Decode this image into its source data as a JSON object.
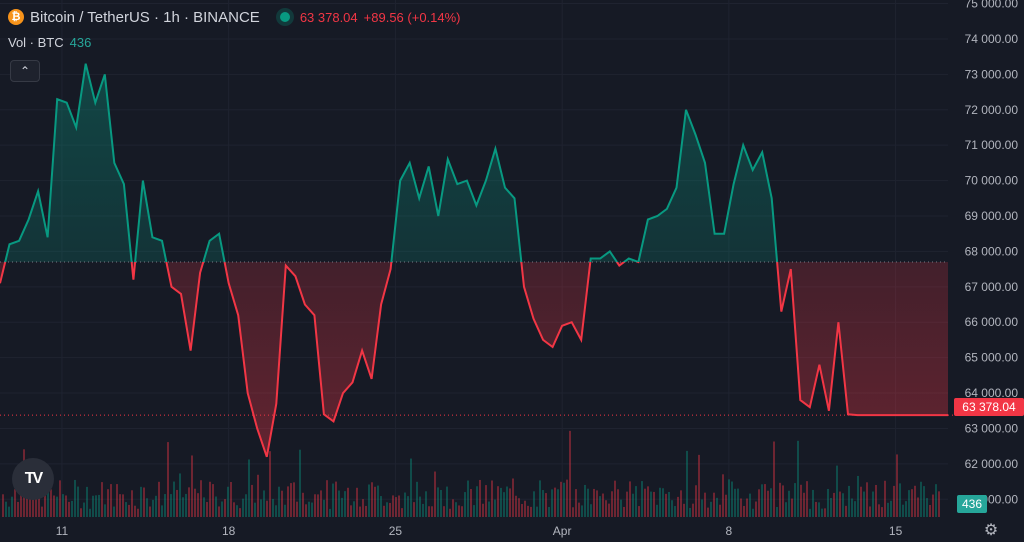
{
  "legend": {
    "coin_glyph": "₿",
    "symbol": "Bitcoin / TetherUS · 1h · BINANCE",
    "last": "63 378.04",
    "change": "+89.56 (+0.14%)"
  },
  "volume_legend": {
    "label": "Vol · BTC",
    "value": "436"
  },
  "buttons": {
    "collapse_glyph": "⌃",
    "logo": "TV",
    "settings_glyph": "⚙"
  },
  "colors": {
    "up": "#089981",
    "down": "#f23645",
    "bg": "#161a25",
    "grid": "#1f2330",
    "text": "#b2b5be"
  },
  "chart_data": {
    "type": "area",
    "baseline": 67700,
    "last_price": 63378.04,
    "last_price_label": "63 378.04",
    "ylim": [
      60500,
      75100
    ],
    "y_ticks": [
      61000,
      62000,
      63000,
      64000,
      65000,
      66000,
      67000,
      68000,
      69000,
      70000,
      71000,
      72000,
      73000,
      74000,
      75000
    ],
    "y_tick_labels": [
      "61 000.00",
      "62 000.00",
      "63 000.00",
      "64 000.00",
      "65 000.00",
      "66 000.00",
      "67 000.00",
      "68 000.00",
      "69 000.00",
      "70 000.00",
      "71 000.00",
      "72 000.00",
      "73 000.00",
      "74 000.00",
      "75 000.00"
    ],
    "x_ticks": [
      {
        "label": "11",
        "day": 11
      },
      {
        "label": "18",
        "day": 18
      },
      {
        "label": "25",
        "day": 25
      },
      {
        "label": "Apr",
        "day": 32
      },
      {
        "label": "8",
        "day": 39
      },
      {
        "label": "15",
        "day": 46
      }
    ],
    "x_range": [
      8.4,
      48.2
    ],
    "series": [
      {
        "x": [
          8.4,
          8.8,
          9.2,
          9.6,
          10.0,
          10.4,
          10.8,
          11.2,
          11.6,
          12.0,
          12.4,
          12.8,
          13.2,
          13.6,
          14.0,
          14.4,
          14.8,
          15.2,
          15.6,
          16.0,
          16.4,
          16.8,
          17.2,
          17.6,
          18.0,
          18.4,
          18.8,
          19.2,
          19.6,
          20.0,
          20.4,
          20.8,
          21.2,
          21.6,
          22.0,
          22.4,
          22.8,
          23.2,
          23.6,
          24.0,
          24.4,
          24.8,
          25.2,
          25.6,
          26.0,
          26.4,
          26.8,
          27.2,
          27.6,
          28.0,
          28.4,
          28.8,
          29.2,
          29.6,
          30.0,
          30.4,
          30.8,
          31.2,
          31.6,
          32.0,
          32.4,
          32.8,
          33.2,
          33.6,
          34.0,
          34.4,
          34.8,
          35.2,
          35.6,
          36.0,
          36.4,
          36.8,
          37.2,
          37.6,
          38.0,
          38.4,
          38.8,
          39.2,
          39.6,
          40.0,
          40.4,
          40.8,
          41.2,
          41.6,
          42.0,
          42.4,
          42.8,
          43.2,
          43.6,
          44.0,
          44.4,
          44.8,
          45.2,
          45.6,
          46.0,
          46.4,
          46.8,
          47.2,
          47.6,
          48.0,
          48.2
        ],
        "values": [
          67100,
          68200,
          68300,
          68900,
          69700,
          68400,
          72300,
          72200,
          71500,
          73300,
          72200,
          73000,
          70500,
          69900,
          67200,
          70000,
          68400,
          68300,
          67000,
          66800,
          65200,
          67400,
          68300,
          68500,
          67100,
          66200,
          64000,
          63000,
          62200,
          63700,
          67600,
          67300,
          66500,
          66200,
          63400,
          63200,
          64000,
          64300,
          65200,
          64400,
          66500,
          67500,
          70000,
          70500,
          69500,
          70400,
          69000,
          70600,
          69900,
          70000,
          69300,
          70000,
          70900,
          69800,
          69500,
          67000,
          66100,
          65500,
          65300,
          65900,
          66000,
          65500,
          67800,
          67800,
          68000,
          67600,
          67800,
          67700,
          68900,
          69000,
          69200,
          69800,
          72000,
          71300,
          70500,
          68500,
          68500,
          69900,
          71000,
          70300,
          70800,
          69500,
          66300,
          67500,
          63800,
          63600,
          64800,
          63500,
          66000,
          63400,
          63378,
          63378,
          63378,
          63378,
          63378,
          63378,
          63378,
          63378,
          63378,
          63378,
          63378
        ]
      }
    ],
    "volume": {
      "current": 436,
      "max": 900
    }
  }
}
